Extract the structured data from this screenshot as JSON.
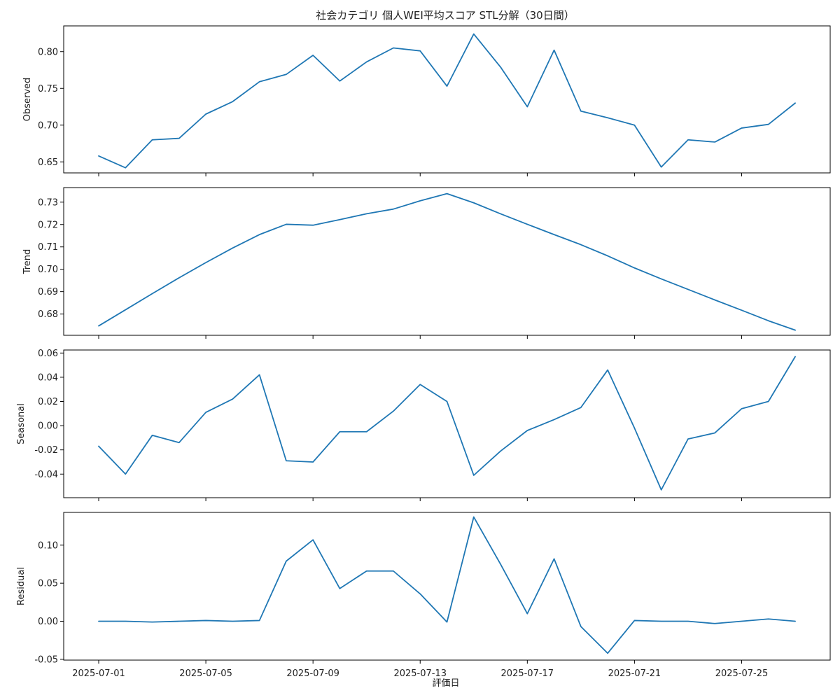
{
  "chart_data": {
    "type": "line",
    "title": "社会カテゴリ 個人WEI平均スコア STL分解（30日間）",
    "xlabel": "評価日",
    "x": [
      "2025-07-01",
      "2025-07-02",
      "2025-07-03",
      "2025-07-04",
      "2025-07-05",
      "2025-07-06",
      "2025-07-07",
      "2025-07-08",
      "2025-07-09",
      "2025-07-10",
      "2025-07-11",
      "2025-07-12",
      "2025-07-13",
      "2025-07-14",
      "2025-07-15",
      "2025-07-16",
      "2025-07-17",
      "2025-07-18",
      "2025-07-19",
      "2025-07-20",
      "2025-07-21",
      "2025-07-22",
      "2025-07-23",
      "2025-07-24",
      "2025-07-25",
      "2025-07-26",
      "2025-07-27"
    ],
    "xticks": [
      "2025-07-01",
      "2025-07-05",
      "2025-07-09",
      "2025-07-13",
      "2025-07-17",
      "2025-07-21",
      "2025-07-25"
    ],
    "line_color": "#1f77b4",
    "grid": false,
    "panels": [
      {
        "ylabel": "Observed",
        "ylim": [
          0.635,
          0.835
        ],
        "yticks": [
          "0.65",
          "0.70",
          "0.75",
          "0.80"
        ],
        "values": [
          0.658,
          0.642,
          0.68,
          0.682,
          0.715,
          0.732,
          0.759,
          0.769,
          0.795,
          0.76,
          0.786,
          0.805,
          0.801,
          0.753,
          0.824,
          0.779,
          0.725,
          0.802,
          0.719,
          0.71,
          0.7,
          0.643,
          0.68,
          0.677,
          0.696,
          0.701,
          0.73
        ]
      },
      {
        "ylabel": "Trend",
        "ylim": [
          0.6705,
          0.7365
        ],
        "yticks": [
          "0.68",
          "0.69",
          "0.70",
          "0.71",
          "0.72",
          "0.73"
        ],
        "values": [
          0.6747,
          0.6819,
          0.6891,
          0.6962,
          0.703,
          0.7095,
          0.7155,
          0.7201,
          0.7197,
          0.7222,
          0.7248,
          0.7269,
          0.7306,
          0.7338,
          0.7297,
          0.7248,
          0.7201,
          0.7155,
          0.711,
          0.706,
          0.7006,
          0.6957,
          0.691,
          0.6863,
          0.6817,
          0.677,
          0.6728
        ]
      },
      {
        "ylabel": "Seasonal",
        "ylim": [
          -0.0595,
          0.0625
        ],
        "yticks": [
          "-0.04",
          "-0.02",
          "0.00",
          "0.02",
          "0.04",
          "0.06"
        ],
        "values": [
          -0.017,
          -0.04,
          -0.008,
          -0.014,
          0.011,
          0.022,
          0.042,
          -0.029,
          -0.03,
          -0.005,
          -0.005,
          0.012,
          0.034,
          0.02,
          -0.041,
          -0.021,
          -0.004,
          0.005,
          0.015,
          0.046,
          -0.002,
          -0.053,
          -0.011,
          -0.006,
          0.014,
          0.02,
          0.057
        ]
      },
      {
        "ylabel": "Residual",
        "ylim": [
          -0.051,
          0.143
        ],
        "yticks": [
          "-0.05",
          "0.00",
          "0.05",
          "0.10"
        ],
        "values": [
          0.0,
          0.0,
          -0.001,
          0.0,
          0.001,
          0.0,
          0.001,
          0.079,
          0.107,
          0.043,
          0.066,
          0.066,
          0.036,
          -0.001,
          0.137,
          0.075,
          0.01,
          0.082,
          -0.007,
          -0.042,
          0.001,
          0.0,
          0.0,
          -0.003,
          0.0,
          0.003,
          0.0
        ]
      }
    ]
  }
}
